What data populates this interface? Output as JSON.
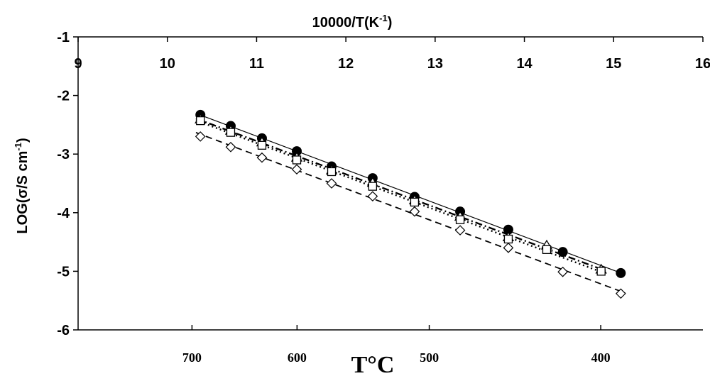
{
  "chart_data": {
    "type": "scatter",
    "title": "",
    "top_axis": {
      "label_main": "10000/T(K",
      "label_sup": "-1",
      "label_end": ")",
      "range": [
        9,
        16
      ],
      "ticks": [
        "9",
        "10",
        "11",
        "12",
        "13",
        "14",
        "15",
        "16"
      ]
    },
    "bottom_axis": {
      "label": "T°C",
      "ticks": [
        {
          "label": "700",
          "celsius": 700
        },
        {
          "label": "600",
          "celsius": 600
        },
        {
          "label": "500",
          "celsius": 500
        },
        {
          "label": "400",
          "celsius": 400
        }
      ]
    },
    "y_axis": {
      "label_main": "LOG(σ/S cm",
      "label_sup": "-1",
      "label_end": ")",
      "range": [
        -6,
        -1
      ],
      "ticks": [
        "-1",
        "-2",
        "-3",
        "-4",
        "-5",
        "-6"
      ]
    },
    "grid": false,
    "series": [
      {
        "marker": "filled-circle",
        "line": "solid",
        "color": "#000000",
        "x": [
          10.37,
          10.71,
          11.06,
          11.45,
          11.84,
          12.3,
          12.77,
          13.28,
          13.82,
          14.43,
          15.08
        ],
        "y": [
          -2.33,
          -2.52,
          -2.73,
          -2.95,
          -3.21,
          -3.41,
          -3.73,
          -3.98,
          -4.29,
          -4.67,
          -5.03
        ]
      },
      {
        "marker": "open-triangle",
        "line": "dash-dot",
        "color": "#000000",
        "x": [
          10.37,
          10.71,
          11.06,
          11.45,
          11.84,
          12.3,
          12.77,
          13.28,
          13.82,
          14.25,
          14.86
        ],
        "y": [
          -2.41,
          -2.6,
          -2.8,
          -3.06,
          -3.28,
          -3.49,
          -3.79,
          -4.07,
          -4.42,
          -4.56,
          -4.97
        ]
      },
      {
        "marker": "open-square",
        "line": "dotted",
        "color": "#000000",
        "x": [
          10.37,
          10.71,
          11.06,
          11.45,
          11.84,
          12.3,
          12.77,
          13.28,
          13.82,
          14.25,
          14.86
        ],
        "y": [
          -2.43,
          -2.63,
          -2.85,
          -3.1,
          -3.3,
          -3.55,
          -3.82,
          -4.12,
          -4.45,
          -4.63,
          -5.0
        ]
      },
      {
        "marker": "open-diamond",
        "line": "dashed",
        "color": "#000000",
        "x": [
          10.37,
          10.71,
          11.06,
          11.45,
          11.84,
          12.3,
          12.77,
          13.28,
          13.82,
          14.43,
          15.08
        ],
        "y": [
          -2.7,
          -2.88,
          -3.06,
          -3.26,
          -3.5,
          -3.72,
          -3.98,
          -4.3,
          -4.6,
          -5.01,
          -5.38
        ]
      }
    ]
  }
}
